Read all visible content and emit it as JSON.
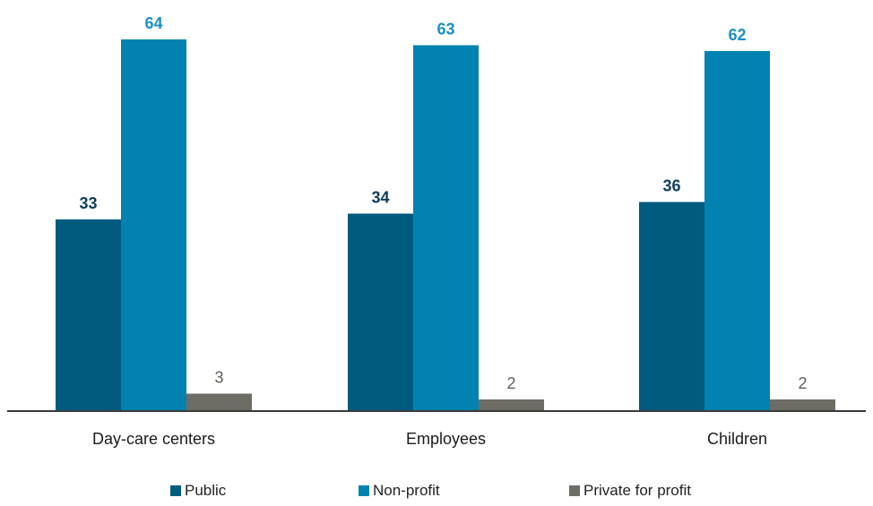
{
  "chart_data": {
    "type": "bar",
    "categories": [
      "Day-care centers",
      "Employees",
      "Children"
    ],
    "series": [
      {
        "name": "Public",
        "values": [
          33,
          34,
          36
        ],
        "color": "#005b7f",
        "label_color": "#0d3d5c"
      },
      {
        "name": "Non-profit",
        "values": [
          64,
          63,
          62
        ],
        "color": "#0282b0",
        "label_color": "#1a8fc0"
      },
      {
        "name": "Private for profit",
        "values": [
          3,
          2,
          2
        ],
        "color": "#6d6d66",
        "label_color": "#5f5f58"
      }
    ],
    "data_labels": true,
    "axis_line_color": "#3a3a3a",
    "ylim": [
      0,
      64
    ],
    "y_axis_visible": false,
    "grid": false,
    "legend_position": "bottom"
  }
}
